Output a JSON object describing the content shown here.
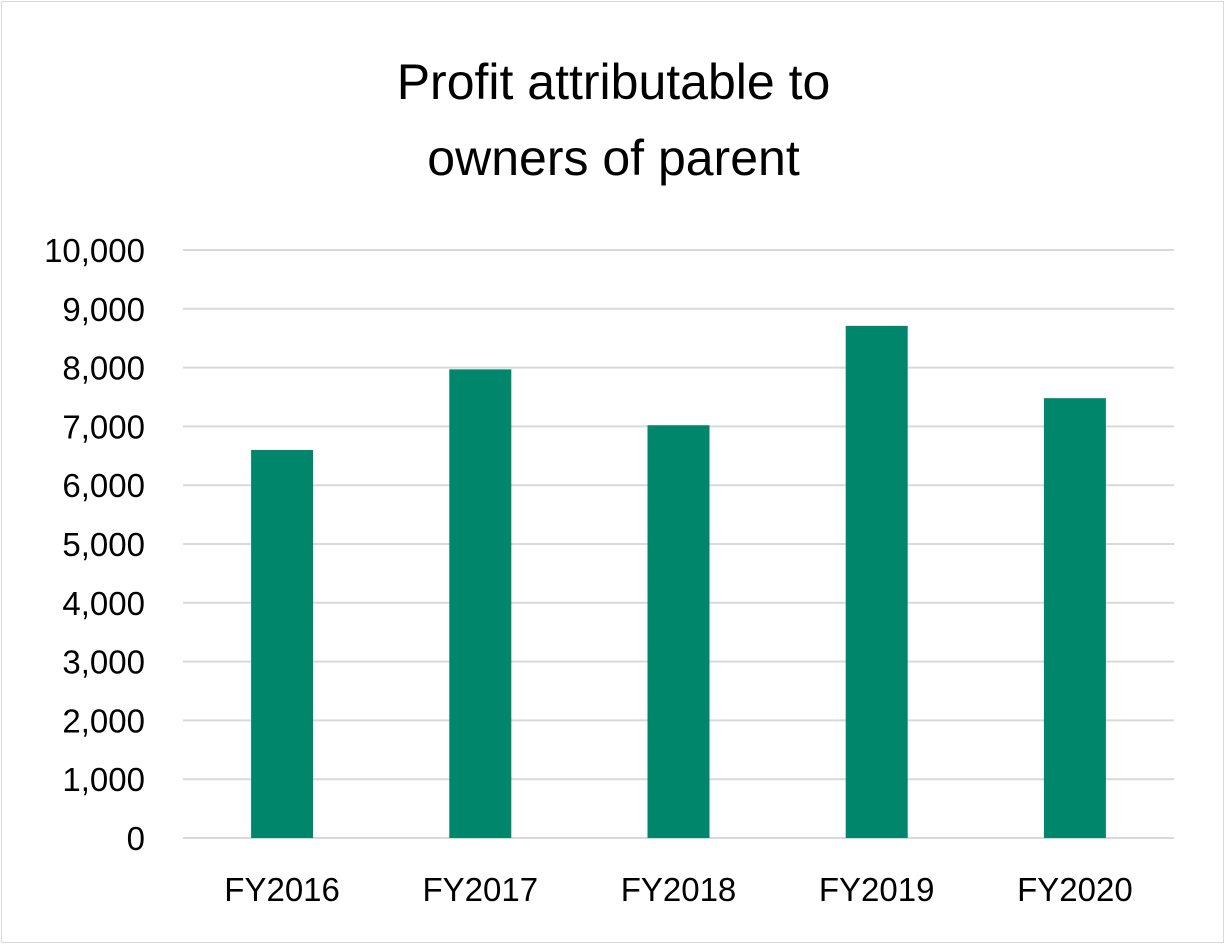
{
  "chart_data": {
    "type": "bar",
    "title_lines": [
      "Profit attributable to",
      "owners of parent"
    ],
    "categories": [
      "FY2016",
      "FY2017",
      "FY2018",
      "FY2019",
      "FY2020"
    ],
    "values": [
      6600,
      7970,
      7020,
      8710,
      7480
    ],
    "xlabel": "",
    "ylabel": "",
    "ylim": [
      0,
      10000
    ],
    "yticks": [
      0,
      1000,
      2000,
      3000,
      4000,
      5000,
      6000,
      7000,
      8000,
      9000,
      10000
    ],
    "ytick_labels": [
      "0",
      "1,000",
      "2,000",
      "3,000",
      "4,000",
      "5,000",
      "6,000",
      "7,000",
      "8,000",
      "9,000",
      "10,000"
    ],
    "grid": true,
    "legend": "none",
    "bar_color": "#00866B",
    "grid_color": "#D9D9D9"
  }
}
